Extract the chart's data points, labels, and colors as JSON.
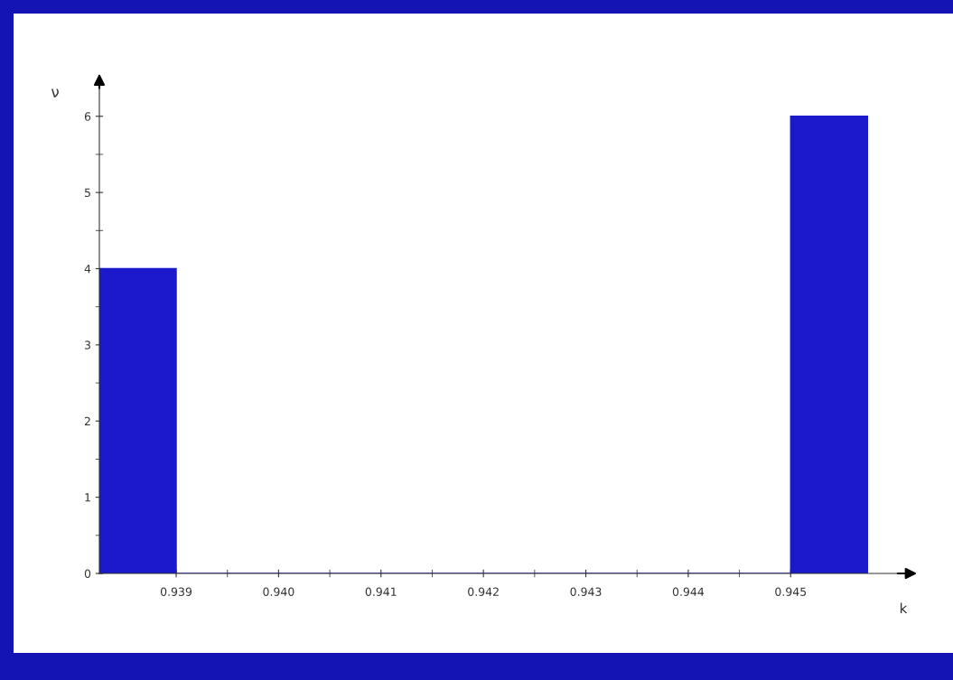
{
  "chart_data": {
    "type": "histogram",
    "xlabel": "k",
    "ylabel": "ν",
    "bins": [
      0.93825,
      0.939,
      0.93975,
      0.9405,
      0.94125,
      0.942,
      0.94275,
      0.9435,
      0.94425,
      0.945,
      0.94575
    ],
    "values": [
      4,
      0,
      0,
      0,
      0,
      0,
      0,
      0,
      0,
      6
    ],
    "color": "#1a1acc",
    "xlim": [
      0.93825,
      0.9461
    ],
    "ylim": [
      0,
      6.4
    ],
    "xticks": [
      {
        "value": 0.939,
        "label": "0.939"
      },
      {
        "value": 0.94,
        "label": "0.940"
      },
      {
        "value": 0.941,
        "label": "0.941"
      },
      {
        "value": 0.942,
        "label": "0.942"
      },
      {
        "value": 0.943,
        "label": "0.943"
      },
      {
        "value": 0.944,
        "label": "0.944"
      },
      {
        "value": 0.945,
        "label": "0.945"
      }
    ],
    "yticks": [
      0,
      1,
      2,
      3,
      4,
      5,
      6
    ],
    "tick_labels": "xy"
  }
}
